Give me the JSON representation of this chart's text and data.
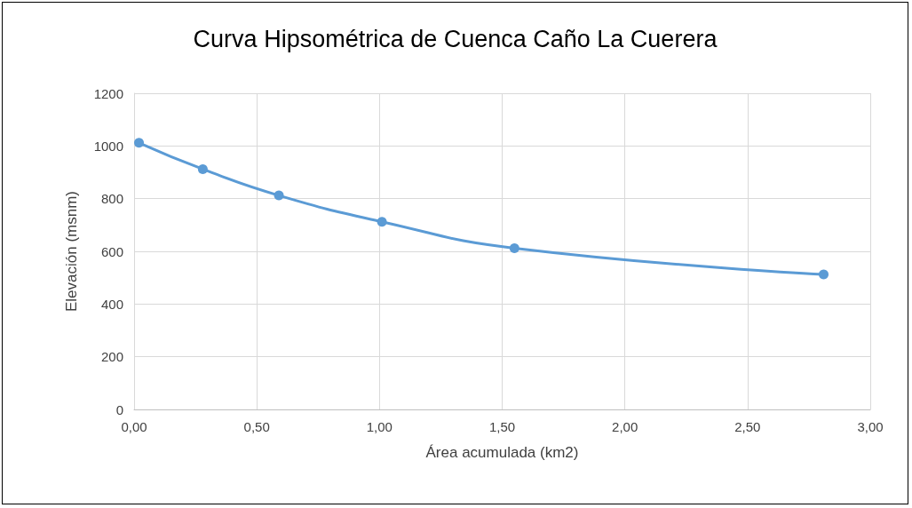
{
  "chart_data": {
    "type": "line",
    "title": "Curva Hipsométrica de Cuenca Caño La Cuerera",
    "xlabel": "Área acumulada (km2)",
    "ylabel": "Elevación (msnm)",
    "x": [
      0.02,
      0.28,
      0.59,
      1.01,
      1.55,
      2.81
    ],
    "series": [
      {
        "color": "#5b9bd5",
        "values": [
          1012,
          912,
          812,
          712,
          612,
          512
        ]
      }
    ],
    "xlim": [
      0,
      3
    ],
    "xticks": [
      {
        "value": 0,
        "label": "0,00"
      },
      {
        "value": 0.5,
        "label": "0,50"
      },
      {
        "value": 1,
        "label": "1,00"
      },
      {
        "value": 1.5,
        "label": "1,50"
      },
      {
        "value": 2,
        "label": "2,00"
      },
      {
        "value": 2.5,
        "label": "2,50"
      },
      {
        "value": 3,
        "label": "3,00"
      }
    ],
    "ylim": [
      0,
      1200
    ],
    "yticks": [
      0,
      200,
      400,
      600,
      800,
      1000,
      1200
    ],
    "grid": true,
    "marker": "circle",
    "line_style": "solid"
  }
}
